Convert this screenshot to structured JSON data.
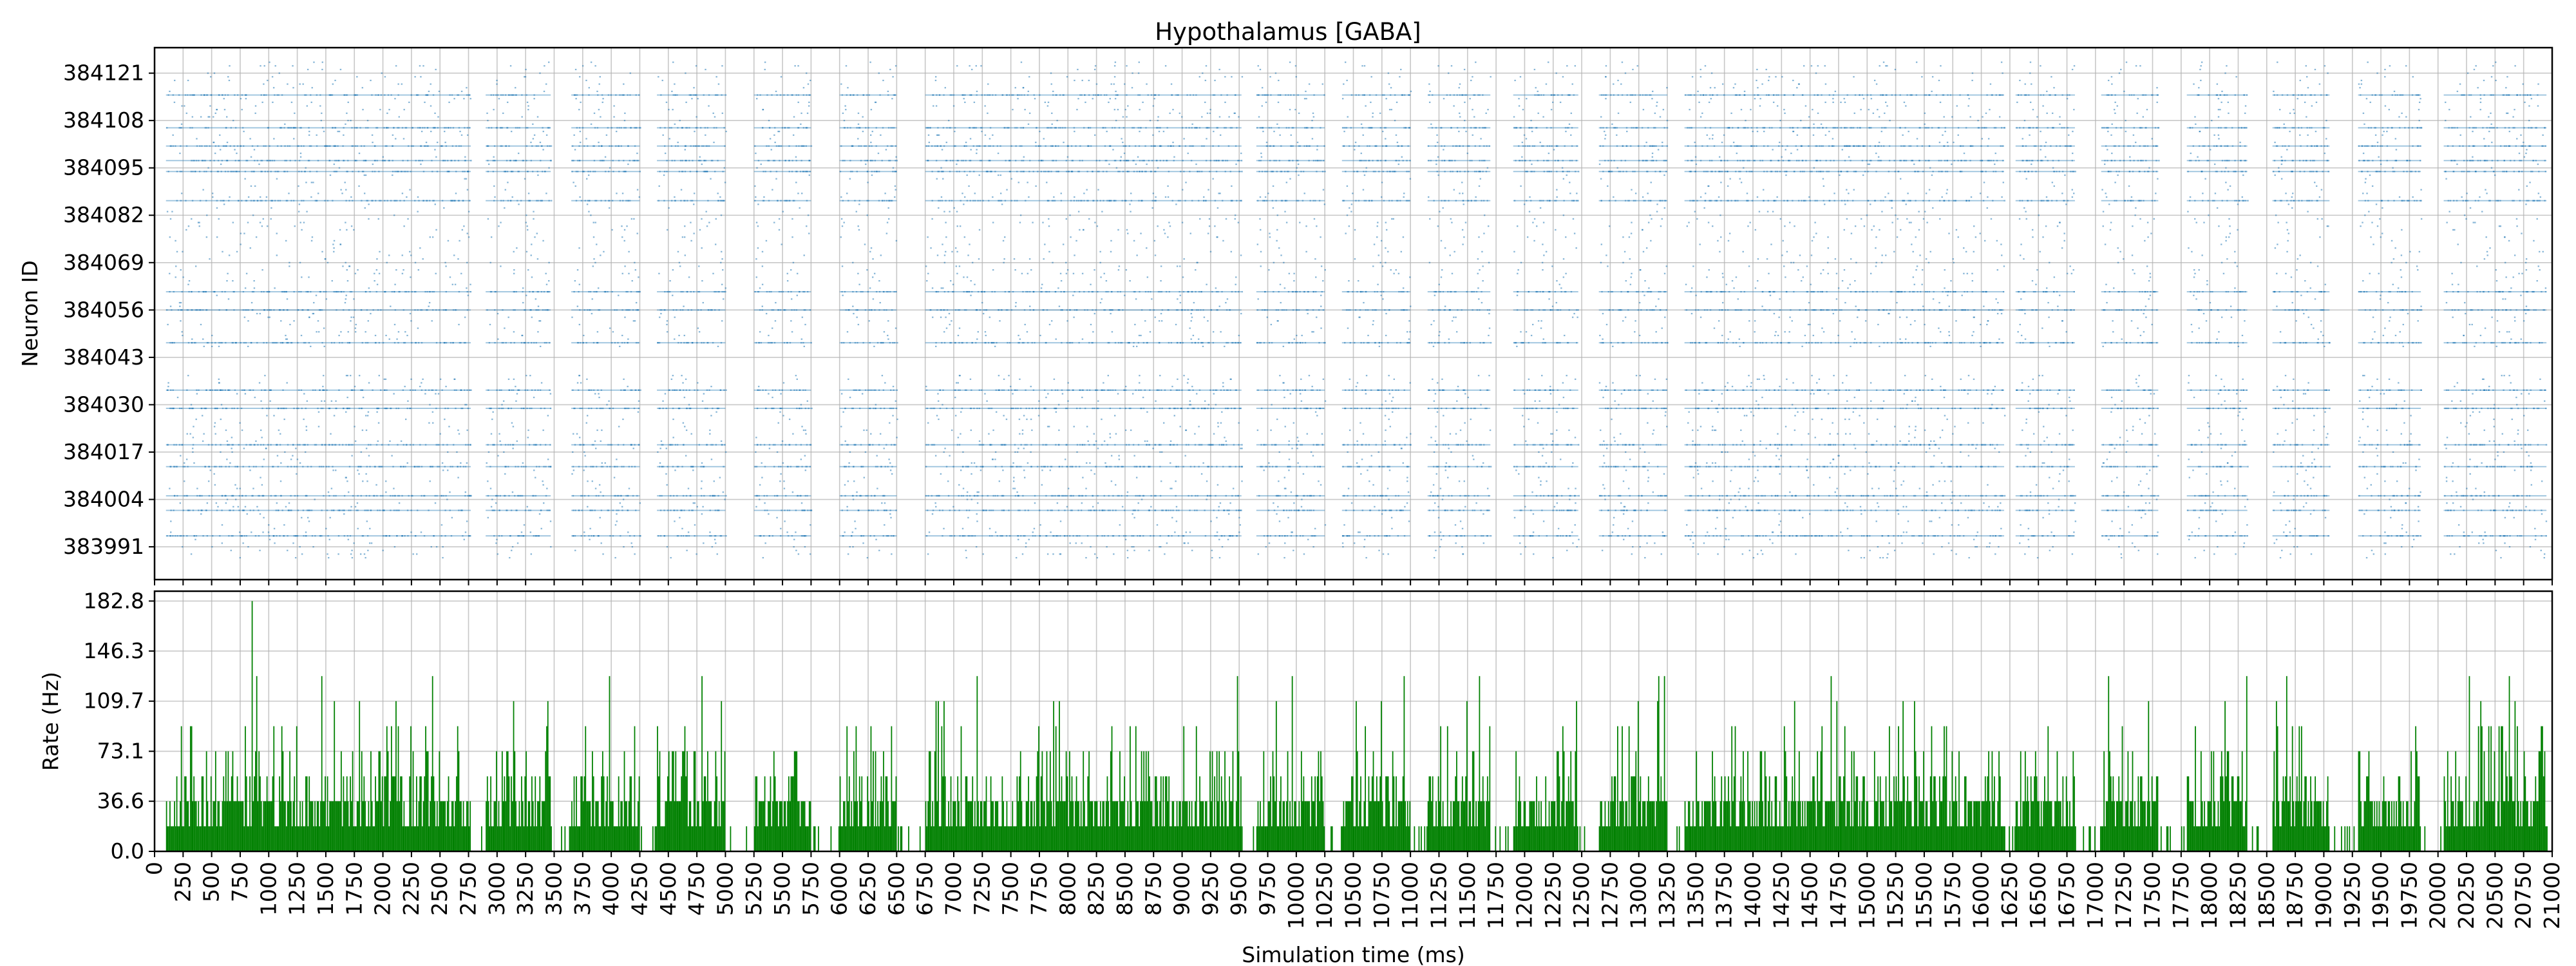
{
  "chart_data": [
    {
      "type": "scatter",
      "title": "Hypothalamus [GABA]",
      "ylabel": "Neuron ID",
      "xlabel": "",
      "xlim": [
        0,
        21000
      ],
      "ylim": [
        383982,
        384128
      ],
      "yticks": [
        "383991",
        "384004",
        "384017",
        "384030",
        "384043",
        "384056",
        "384069",
        "384082",
        "384095",
        "384108",
        "384121"
      ],
      "grid": true,
      "marker_color": "#1f77b4",
      "active_windows_ms": [
        [
          100,
          2770
        ],
        [
          2900,
          3470
        ],
        [
          3650,
          4250
        ],
        [
          4400,
          5000
        ],
        [
          5250,
          5750
        ],
        [
          6000,
          6500
        ],
        [
          6750,
          9520
        ],
        [
          9650,
          10250
        ],
        [
          10400,
          11000
        ],
        [
          11150,
          11700
        ],
        [
          11900,
          12470
        ],
        [
          12650,
          13250
        ],
        [
          13400,
          16200
        ],
        [
          16300,
          16820
        ],
        [
          17050,
          17550
        ],
        [
          17800,
          18330
        ],
        [
          18550,
          19050
        ],
        [
          19300,
          19850
        ],
        [
          20050,
          20950
        ]
      ],
      "dense_neuron_ids": [
        383994,
        384001,
        384005,
        384013,
        384019,
        384029,
        384034,
        384047,
        384056,
        384061,
        384086,
        384094,
        384097,
        384101,
        384106,
        384115
      ],
      "silent_neuron_ids": [
        384039,
        384040,
        384041,
        384042,
        384043,
        384044,
        384045
      ]
    },
    {
      "type": "bar",
      "ylabel": "Rate (Hz)",
      "xlabel": "Simulation time (ms)",
      "xlim": [
        0,
        21000
      ],
      "ylim": [
        0,
        190
      ],
      "yticks": [
        "0.0",
        "36.6",
        "73.1",
        "109.7",
        "146.3",
        "182.8"
      ],
      "xticks": [
        "0",
        "250",
        "500",
        "750",
        "1000",
        "1250",
        "1500",
        "1750",
        "2000",
        "2250",
        "2500",
        "2750",
        "3000",
        "3250",
        "3500",
        "3750",
        "4000",
        "4250",
        "4500",
        "4750",
        "5000",
        "5250",
        "5500",
        "5750",
        "6000",
        "6250",
        "6500",
        "6750",
        "7000",
        "7250",
        "7500",
        "7750",
        "8000",
        "8250",
        "8500",
        "8750",
        "9000",
        "9250",
        "9500",
        "9750",
        "10000",
        "10250",
        "10500",
        "10750",
        "11000",
        "11250",
        "11500",
        "11750",
        "12000",
        "12250",
        "12500",
        "12750",
        "13000",
        "13250",
        "13500",
        "13750",
        "14000",
        "14250",
        "14500",
        "14750",
        "15000",
        "15250",
        "15500",
        "15750",
        "16000",
        "16250",
        "16500",
        "16750",
        "17000",
        "17250",
        "17500",
        "17750",
        "18000",
        "18250",
        "18500",
        "18750",
        "19000",
        "19250",
        "19500",
        "19750",
        "20000",
        "20250",
        "20500",
        "20750",
        "21000"
      ],
      "bin_ms": 10,
      "rate_levels_hz": [
        18.3,
        36.6,
        54.8,
        73.1,
        91.4,
        109.7,
        128.0,
        146.3,
        182.8
      ],
      "typical_rate_hz": 36.6,
      "peak_rate_hz": 182.8,
      "peak_time_ms": 850,
      "grid": true,
      "bar_color": "#008000"
    }
  ]
}
